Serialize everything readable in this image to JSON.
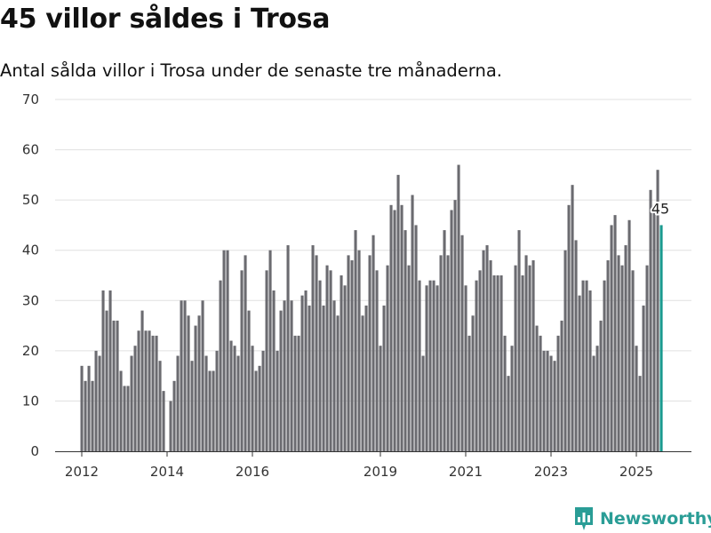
{
  "header": {
    "title": "45 villor såldes i Trosa",
    "subtitle": "Antal sålda villor i Trosa under de senaste tre månaderna."
  },
  "brand": {
    "name": "Newsworthy",
    "color": "#2a9d96"
  },
  "chart_data": {
    "type": "bar",
    "title": "45 villor såldes i Trosa",
    "subtitle": "Antal sålda villor i Trosa under de senaste tre månaderna.",
    "xlabel": "",
    "ylabel": "",
    "ylim": [
      0,
      70
    ],
    "yticks": [
      0,
      10,
      20,
      30,
      40,
      50,
      60,
      70
    ],
    "xticks": [
      "2012",
      "2014",
      "2016",
      "2019",
      "2021",
      "2023",
      "2025"
    ],
    "grid": true,
    "legend": "none",
    "series_color": "#6b6b70",
    "highlight_color": "#1a9a8f",
    "highlight_label": "45",
    "start": "2012-01",
    "values": [
      17,
      14,
      17,
      14,
      20,
      19,
      32,
      28,
      32,
      26,
      26,
      16,
      13,
      13,
      19,
      21,
      24,
      28,
      24,
      24,
      23,
      23,
      18,
      12,
      null,
      10,
      14,
      19,
      30,
      30,
      27,
      18,
      25,
      27,
      30,
      19,
      16,
      16,
      20,
      34,
      40,
      40,
      22,
      21,
      19,
      36,
      39,
      28,
      21,
      16,
      17,
      20,
      36,
      40,
      32,
      20,
      28,
      30,
      41,
      30,
      23,
      23,
      31,
      32,
      29,
      41,
      39,
      34,
      29,
      37,
      36,
      30,
      27,
      35,
      33,
      39,
      38,
      44,
      40,
      27,
      29,
      39,
      43,
      36,
      21,
      29,
      37,
      49,
      48,
      55,
      49,
      44,
      37,
      51,
      45,
      34,
      19,
      33,
      34,
      34,
      33,
      39,
      44,
      39,
      48,
      50,
      57,
      43,
      33,
      23,
      27,
      34,
      36,
      40,
      41,
      38,
      35,
      35,
      35,
      23,
      15,
      21,
      37,
      44,
      35,
      39,
      37,
      38,
      25,
      23,
      20,
      20,
      19,
      18,
      23,
      26,
      40,
      49,
      53,
      42,
      31,
      34,
      34,
      32,
      19,
      21,
      26,
      34,
      38,
      45,
      47,
      39,
      37,
      41,
      46,
      36,
      21,
      15,
      29,
      37,
      52,
      49,
      56,
      45
    ]
  }
}
